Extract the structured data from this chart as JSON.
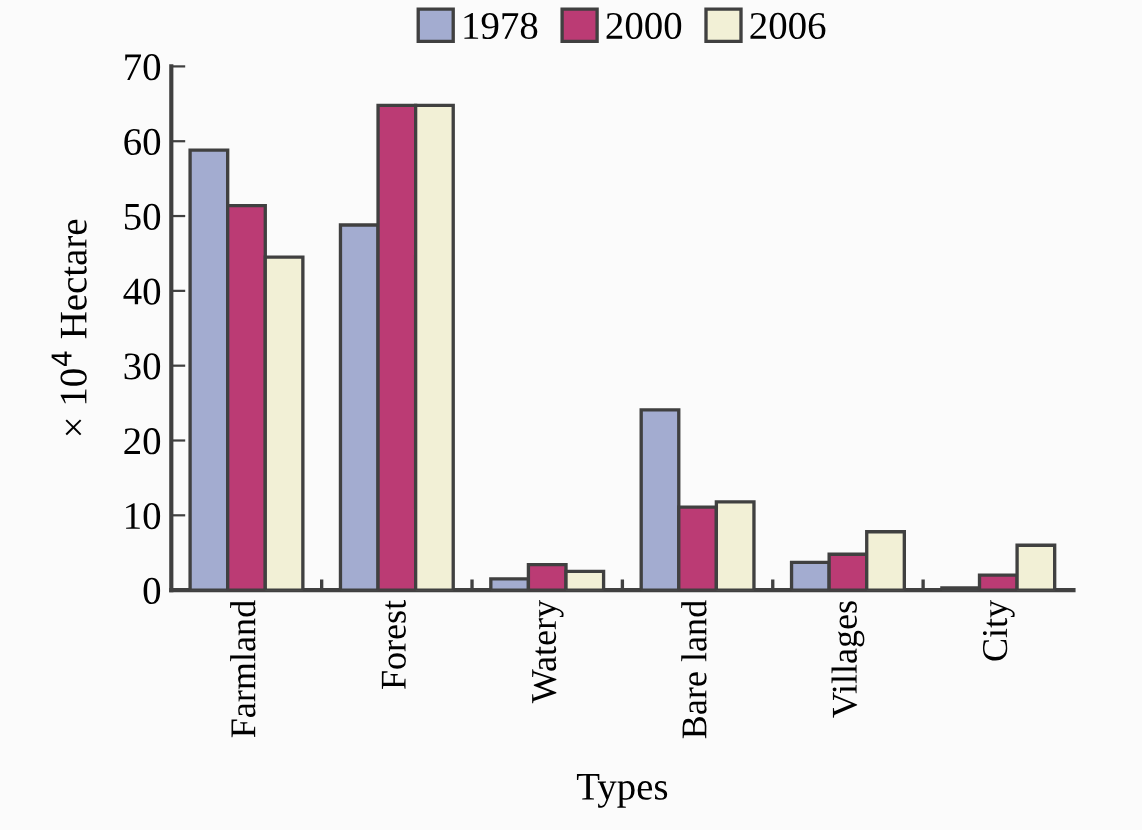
{
  "chart_data": {
    "type": "bar",
    "xlabel": "Types",
    "ylabel": "× 10$^{4}$ Hectare",
    "categories": [
      "Farmland",
      "Forest",
      "Watery",
      "Bare land",
      "Villages",
      "City"
    ],
    "series": [
      {
        "name": "1978",
        "color": "#a3acd0",
        "values": [
          58.8,
          48.8,
          1.5,
          24.1,
          3.7,
          0.3
        ]
      },
      {
        "name": "2000",
        "color": "#bb3b74",
        "values": [
          51.4,
          64.8,
          3.4,
          11.1,
          4.8,
          2.0
        ]
      },
      {
        "name": "2006",
        "color": "#f2f0d6",
        "values": [
          44.5,
          64.8,
          2.5,
          11.8,
          7.8,
          6.0
        ]
      }
    ],
    "ylim": [
      0,
      70
    ],
    "yticks": [
      0,
      10,
      20,
      30,
      40,
      50,
      60,
      70
    ],
    "grid": false,
    "legend": "top"
  }
}
